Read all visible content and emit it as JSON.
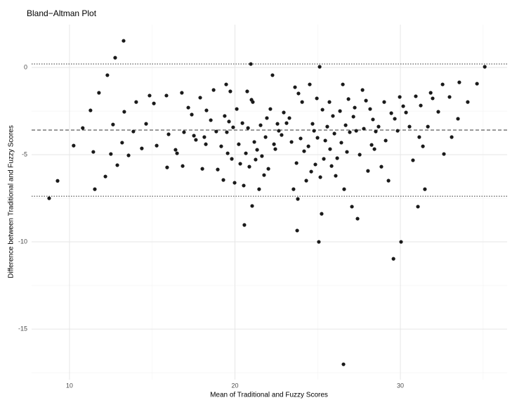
{
  "chart_data": {
    "type": "scatter",
    "title": "Bland−Altman Plot",
    "x_label": "Mean of Traditional and Fuzzy Scores",
    "y_label": "Difference between Traditional and Fuzzy Scores",
    "xlim": [
      7.71,
      36.45
    ],
    "ylim": [
      -17.9,
      2.46
    ],
    "xticks": [
      10,
      20,
      30
    ],
    "yticks": [
      0,
      -5,
      -10,
      -15
    ],
    "grid": true,
    "color": "#1a1a1a",
    "reference_lines": [
      {
        "value": 0.2,
        "dash": "dotted"
      },
      {
        "value": -3.59,
        "dash": "dashed"
      },
      {
        "value": -7.38,
        "dash": "dotted"
      }
    ],
    "x": [
      8.77,
      9.28,
      10.25,
      10.8,
      11.27,
      11.44,
      11.53,
      11.78,
      12.17,
      12.29,
      12.5,
      12.63,
      12.76,
      12.89,
      13.18,
      13.27,
      13.31,
      13.57,
      13.86,
      14.03,
      14.37,
      14.63,
      14.84,
      15.1,
      15.27,
      15.86,
      15.9,
      15.99,
      16.41,
      16.5,
      16.79,
      16.84,
      16.92,
      17.18,
      17.39,
      17.52,
      17.64,
      17.9,
      18.03,
      18.15,
      18.28,
      18.24,
      18.54,
      18.71,
      18.87,
      18.96,
      19.17,
      19.3,
      19.38,
      19.47,
      19.51,
      19.56,
      19.64,
      19.72,
      19.81,
      19.89,
      19.98,
      20.11,
      20.23,
      20.32,
      20.45,
      20.53,
      20.57,
      20.66,
      20.74,
      20.79,
      20.87,
      20.96,
      21.0,
      21.04,
      21.08,
      21.17,
      21.25,
      21.34,
      21.46,
      21.55,
      21.63,
      21.76,
      21.85,
      21.93,
      22.02,
      22.14,
      22.27,
      22.36,
      22.44,
      22.57,
      22.65,
      22.82,
      22.95,
      23.12,
      23.29,
      23.42,
      23.54,
      23.63,
      23.72,
      23.76,
      23.8,
      23.84,
      23.97,
      24.06,
      24.18,
      24.31,
      24.44,
      24.52,
      24.61,
      24.69,
      24.78,
      24.86,
      24.95,
      24.99,
      25.07,
      25.12,
      25.16,
      25.24,
      25.29,
      25.37,
      25.46,
      25.58,
      25.71,
      25.75,
      25.84,
      25.92,
      26.01,
      26.09,
      26.18,
      26.35,
      26.43,
      26.52,
      26.56,
      26.6,
      26.69,
      26.77,
      26.86,
      26.94,
      27.07,
      27.16,
      27.24,
      27.33,
      27.41,
      27.54,
      27.71,
      27.79,
      27.92,
      28.04,
      28.17,
      28.26,
      28.34,
      28.43,
      28.51,
      28.68,
      28.85,
      29.02,
      29.11,
      29.28,
      29.45,
      29.58,
      29.66,
      29.83,
      29.96,
      30.04,
      30.17,
      30.34,
      30.55,
      30.76,
      30.93,
      31.06,
      31.14,
      31.23,
      31.36,
      31.48,
      31.66,
      31.83,
      31.95,
      32.29,
      32.55,
      32.63,
      32.97,
      33.1,
      33.48,
      33.56,
      34.07,
      34.63,
      35.1
    ],
    "values": [
      -7.5,
      -6.5,
      -4.48,
      -3.47,
      -2.46,
      -4.84,
      -6.98,
      -1.45,
      -6.25,
      -0.44,
      -4.96,
      -3.27,
      0.56,
      -5.6,
      -4.31,
      1.53,
      -2.54,
      -5.04,
      -3.67,
      -1.98,
      -4.64,
      -3.23,
      -1.61,
      -2.06,
      -4.48,
      -1.61,
      -5.73,
      -3.83,
      -4.72,
      -4.92,
      -1.45,
      -5.65,
      -3.71,
      -2.3,
      -2.7,
      -3.91,
      -4.15,
      -1.73,
      -5.81,
      -3.99,
      -2.46,
      -4.4,
      -3.02,
      -1.29,
      -3.67,
      -5.85,
      -4.52,
      -6.45,
      -2.78,
      -0.97,
      -3.71,
      -4.92,
      -3.1,
      -1.37,
      -5.24,
      -3.43,
      -6.61,
      -2.38,
      -4.4,
      -5.52,
      -3.19,
      -6.77,
      -9.03,
      -4.92,
      -1.37,
      -3.47,
      -5.69,
      0.2,
      -1.85,
      -7.94,
      -1.98,
      -4.27,
      -5.28,
      -4.72,
      -6.98,
      -3.31,
      -5.08,
      -6.17,
      -3.99,
      -2.9,
      -5.81,
      -2.38,
      -0.44,
      -4.4,
      -4.68,
      -3.23,
      -3.63,
      -3.87,
      -2.58,
      -3.19,
      -2.9,
      -4.27,
      -6.98,
      -1.13,
      -5.48,
      -9.35,
      -7.54,
      -1.49,
      -4.07,
      -1.98,
      -4.8,
      -6.49,
      -4.52,
      -0.97,
      -5.97,
      -3.23,
      -3.63,
      -5.56,
      -1.77,
      -4.03,
      -10,
      0.04,
      -6.29,
      -8.39,
      -2.42,
      -5.24,
      -4.19,
      -3.39,
      -1.98,
      -4.68,
      -5.65,
      -2.78,
      -3.79,
      -6.21,
      -5.2,
      -2.5,
      -4.31,
      -0.97,
      -17.02,
      -6.98,
      -3.31,
      -4.84,
      -1.81,
      -3.71,
      -7.98,
      -2.82,
      -2.3,
      -3.63,
      -8.67,
      -5.0,
      -1.29,
      -3.51,
      -1.9,
      -5.93,
      -2.38,
      -4.44,
      -2.98,
      -4.68,
      -3.67,
      -3.39,
      -5.69,
      -1.98,
      -4.19,
      -6.49,
      -2.62,
      -10.97,
      -2.94,
      -3.63,
      -1.69,
      -10,
      -2.22,
      -2.58,
      -3.39,
      -5.32,
      -1.65,
      -7.98,
      -3.99,
      -2.18,
      -4.52,
      -6.98,
      -3.39,
      -1.45,
      -1.77,
      -2.54,
      -0.97,
      -4.96,
      -1.69,
      -3.99,
      -2.94,
      -0.85,
      -1.98,
      -0.93,
      0.04
    ]
  }
}
